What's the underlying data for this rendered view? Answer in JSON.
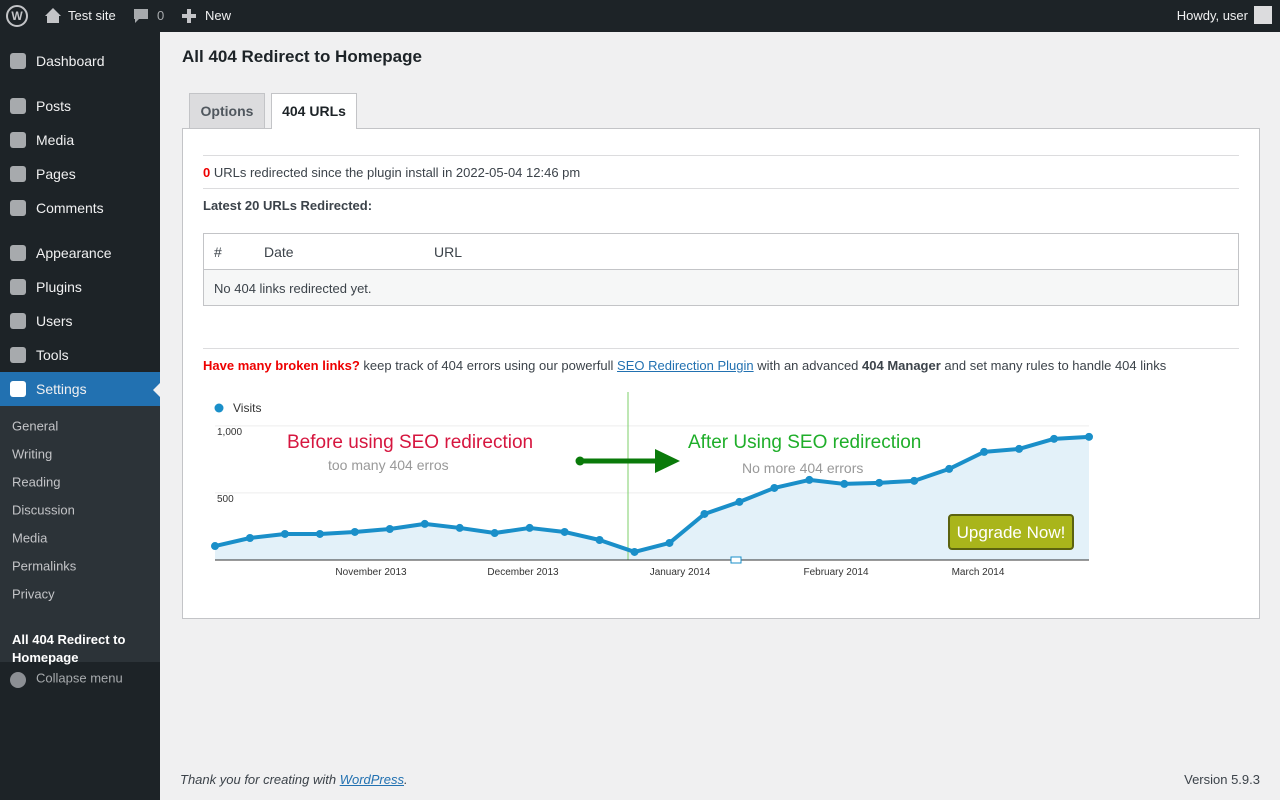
{
  "admin_bar": {
    "site": "Test site",
    "comments": "0",
    "new": "New",
    "greeting": "Howdy, user"
  },
  "menu": [
    "Dashboard",
    "Posts",
    "Media",
    "Pages",
    "Comments",
    "Appearance",
    "Plugins",
    "Users",
    "Tools",
    "Settings"
  ],
  "submenu": [
    "General",
    "Writing",
    "Reading",
    "Discussion",
    "Media",
    "Permalinks",
    "Privacy",
    "All 404 Redirect to Homepage"
  ],
  "collapse": "Collapse menu",
  "page": {
    "title": "All 404 Redirect to Homepage",
    "tabs": [
      "Options",
      "404 URLs"
    ],
    "count": "0",
    "count_text": " URLs redirected since the plugin install in 2022-05-04 12:46 pm",
    "latest": "Latest 20 URLs Redirected:",
    "table": {
      "headers": [
        "#",
        "Date",
        "URL"
      ],
      "empty": "No 404 links redirected yet."
    },
    "promo": {
      "lead": "Have many broken links?",
      "text1": " keep track of 404 errors using our powerfull ",
      "link": "SEO Redirection Plugin",
      "text2": " with an advanced ",
      "bold": "404 Manager",
      "text3": " and set many rules to handle 404 links"
    }
  },
  "promo_chart": {
    "type": "line",
    "legend": "Visits",
    "color": "#1a8fc9",
    "values": [
      104,
      164,
      194,
      194,
      209,
      231,
      269,
      239,
      201,
      239,
      209,
      149,
      60,
      127,
      343,
      433,
      537,
      597,
      567,
      575,
      590,
      679,
      806,
      828,
      903,
      918
    ],
    "ylim": [
      0,
      1200
    ],
    "yticks": [
      500,
      {
        "value": 1000,
        "label": "1,000"
      }
    ],
    "x_labels": [
      "November 2013",
      "December 2013",
      "January 2014",
      "February 2014",
      "March 2014"
    ],
    "annotations": {
      "before": "Before using SEO redirection",
      "before_sub": "too many 404 erros",
      "after": "After Using SEO redirection",
      "after_sub": "No more 404 errors"
    },
    "button": "Upgrade Now!"
  },
  "footer": {
    "thanks": "Thank you for creating with ",
    "link": "WordPress",
    "period": ".",
    "version": "Version 5.9.3"
  }
}
